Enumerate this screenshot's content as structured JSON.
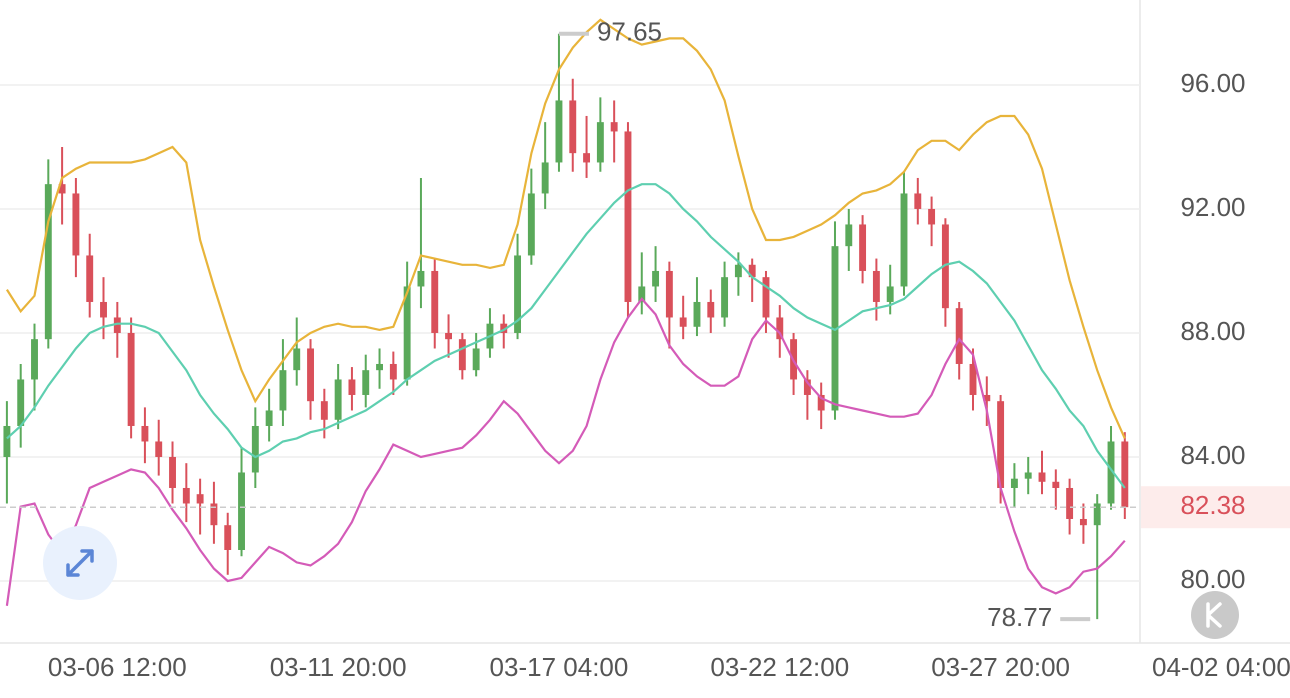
{
  "chart_data": {
    "type": "candlestick",
    "up_color": "#5aa95a",
    "down_color": "#d9505a",
    "ylim": [
      78.0,
      98.74
    ],
    "xlim": [
      -0.5,
      82.1
    ],
    "grid": true,
    "yticks": [
      {
        "value": 80,
        "label": "80.00"
      },
      {
        "value": 84,
        "label": "84.00"
      },
      {
        "value": 88,
        "label": "88.00"
      },
      {
        "value": 92,
        "label": "92.00"
      },
      {
        "value": 96,
        "label": "96.00"
      }
    ],
    "xticks": [
      {
        "value": 8,
        "label": "03-06 12:00"
      },
      {
        "value": 24,
        "label": "03-11 20:00"
      },
      {
        "value": 40,
        "label": "03-17 04:00"
      },
      {
        "value": 56,
        "label": "03-22 12:00"
      },
      {
        "value": 72,
        "label": "03-27 20:00"
      },
      {
        "value": 88,
        "label": "04-02 04:00"
      }
    ],
    "candles": [
      [
        84.0,
        85.8,
        82.5,
        85.0
      ],
      [
        85.0,
        87.0,
        84.3,
        86.5
      ],
      [
        86.5,
        88.3,
        85.5,
        87.8
      ],
      [
        87.8,
        93.6,
        87.5,
        92.8
      ],
      [
        92.8,
        94.0,
        91.5,
        92.5
      ],
      [
        92.5,
        93.0,
        89.8,
        90.5
      ],
      [
        90.5,
        91.2,
        88.5,
        89.0
      ],
      [
        89.0,
        89.8,
        87.8,
        88.5
      ],
      [
        88.5,
        89.0,
        87.2,
        88.0
      ],
      [
        88.0,
        88.5,
        84.6,
        85.0
      ],
      [
        85.0,
        85.6,
        83.8,
        84.5
      ],
      [
        84.5,
        85.2,
        83.4,
        84.0
      ],
      [
        84.0,
        84.5,
        82.5,
        83.0
      ],
      [
        83.0,
        83.8,
        81.9,
        82.5
      ],
      [
        82.8,
        83.3,
        81.5,
        82.5
      ],
      [
        82.5,
        83.2,
        81.2,
        81.8
      ],
      [
        81.8,
        82.2,
        80.2,
        81.0
      ],
      [
        81.0,
        84.3,
        80.8,
        83.5
      ],
      [
        83.5,
        85.6,
        83.0,
        85.0
      ],
      [
        85.0,
        86.2,
        84.5,
        85.5
      ],
      [
        85.5,
        87.8,
        85.0,
        86.8
      ],
      [
        86.8,
        88.5,
        86.3,
        87.5
      ],
      [
        87.5,
        87.8,
        85.2,
        85.8
      ],
      [
        85.8,
        86.2,
        84.6,
        85.2
      ],
      [
        85.2,
        87.0,
        84.9,
        86.5
      ],
      [
        86.5,
        86.9,
        85.5,
        86.0
      ],
      [
        86.0,
        87.3,
        85.6,
        86.8
      ],
      [
        86.8,
        87.5,
        86.2,
        87.0
      ],
      [
        87.0,
        87.4,
        86.0,
        86.5
      ],
      [
        86.5,
        90.3,
        86.3,
        89.5
      ],
      [
        89.5,
        93.0,
        88.8,
        90.0
      ],
      [
        90.0,
        90.4,
        87.5,
        88.0
      ],
      [
        88.0,
        88.6,
        87.2,
        87.8
      ],
      [
        87.8,
        88.0,
        86.5,
        86.8
      ],
      [
        86.8,
        88.0,
        86.6,
        87.5
      ],
      [
        87.5,
        88.8,
        87.2,
        88.3
      ],
      [
        88.3,
        88.6,
        87.5,
        88.0
      ],
      [
        88.0,
        91.2,
        87.8,
        90.5
      ],
      [
        90.5,
        93.3,
        90.2,
        92.5
      ],
      [
        92.5,
        94.8,
        92.0,
        93.5
      ],
      [
        93.5,
        97.65,
        93.2,
        95.5
      ],
      [
        95.5,
        96.2,
        93.2,
        93.8
      ],
      [
        93.8,
        95.0,
        93.0,
        93.5
      ],
      [
        93.5,
        95.6,
        93.2,
        94.8
      ],
      [
        94.8,
        95.5,
        93.5,
        94.5
      ],
      [
        94.5,
        94.8,
        88.5,
        89.0
      ],
      [
        89.0,
        90.6,
        88.6,
        89.5
      ],
      [
        89.5,
        90.8,
        89.0,
        90.0
      ],
      [
        90.0,
        90.3,
        87.5,
        88.5
      ],
      [
        88.5,
        89.2,
        87.8,
        88.2
      ],
      [
        88.2,
        89.8,
        87.9,
        89.0
      ],
      [
        89.0,
        89.4,
        88.0,
        88.5
      ],
      [
        88.5,
        90.3,
        88.2,
        89.8
      ],
      [
        89.8,
        90.6,
        89.2,
        90.2
      ],
      [
        90.2,
        90.4,
        89.0,
        89.8
      ],
      [
        89.8,
        90.0,
        88.0,
        88.5
      ],
      [
        88.5,
        88.9,
        87.2,
        87.8
      ],
      [
        87.8,
        88.0,
        86.0,
        86.5
      ],
      [
        86.5,
        86.8,
        85.2,
        86.0
      ],
      [
        86.0,
        86.4,
        84.9,
        85.5
      ],
      [
        85.5,
        91.6,
        85.2,
        90.8
      ],
      [
        90.8,
        92.0,
        90.0,
        91.5
      ],
      [
        91.5,
        91.8,
        89.6,
        90.0
      ],
      [
        90.0,
        90.4,
        88.4,
        89.0
      ],
      [
        89.0,
        90.2,
        88.6,
        89.5
      ],
      [
        89.5,
        93.2,
        89.2,
        92.5
      ],
      [
        92.5,
        93.0,
        91.5,
        92.0
      ],
      [
        92.0,
        92.4,
        90.8,
        91.5
      ],
      [
        91.5,
        91.7,
        88.2,
        88.8
      ],
      [
        88.8,
        89.0,
        86.5,
        87.0
      ],
      [
        87.0,
        87.5,
        85.5,
        86.0
      ],
      [
        86.0,
        86.6,
        85.0,
        85.8
      ],
      [
        85.8,
        86.0,
        82.5,
        83.0
      ],
      [
        83.0,
        83.8,
        82.4,
        83.3
      ],
      [
        83.3,
        84.0,
        82.8,
        83.5
      ],
      [
        83.5,
        84.2,
        82.8,
        83.2
      ],
      [
        83.2,
        83.6,
        82.3,
        83.0
      ],
      [
        83.0,
        83.3,
        81.5,
        82.0
      ],
      [
        82.0,
        82.5,
        81.2,
        81.8
      ],
      [
        81.8,
        82.8,
        78.77,
        82.5
      ],
      [
        82.5,
        85.0,
        82.3,
        84.5
      ],
      [
        84.5,
        84.8,
        82.0,
        82.38
      ]
    ],
    "bands": [
      {
        "color": "#e8b43a",
        "values": [
          89.4,
          88.7,
          89.2,
          91.6,
          93.0,
          93.3,
          93.5,
          93.5,
          93.5,
          93.5,
          93.6,
          93.8,
          94.0,
          93.5,
          91.0,
          89.5,
          88.1,
          86.8,
          85.8,
          86.5,
          87.1,
          87.7,
          88.0,
          88.2,
          88.3,
          88.2,
          88.2,
          88.1,
          88.2,
          89.3,
          90.5,
          90.4,
          90.3,
          90.2,
          90.2,
          90.1,
          90.2,
          91.5,
          93.8,
          95.4,
          96.5,
          97.2,
          97.7,
          98.1,
          97.8,
          97.5,
          97.3,
          97.4,
          97.5,
          97.5,
          97.1,
          96.5,
          95.5,
          93.7,
          92.0,
          91.0,
          91.0,
          91.1,
          91.3,
          91.5,
          91.8,
          92.2,
          92.5,
          92.6,
          92.8,
          93.2,
          93.9,
          94.2,
          94.2,
          93.9,
          94.4,
          94.8,
          95.0,
          95.0,
          94.4,
          93.3,
          91.5,
          89.7,
          88.2,
          86.8,
          85.6,
          84.6
        ]
      },
      {
        "color": "#5ecfb0",
        "values": [
          84.6,
          85.0,
          85.6,
          86.3,
          86.9,
          87.5,
          88.0,
          88.2,
          88.3,
          88.3,
          88.2,
          88.0,
          87.4,
          86.8,
          86.0,
          85.4,
          84.9,
          84.3,
          84.0,
          84.2,
          84.5,
          84.6,
          84.8,
          84.9,
          85.1,
          85.3,
          85.5,
          85.8,
          86.1,
          86.5,
          86.8,
          87.1,
          87.3,
          87.5,
          87.7,
          87.9,
          88.1,
          88.4,
          88.8,
          89.4,
          90.0,
          90.6,
          91.2,
          91.7,
          92.2,
          92.6,
          92.8,
          92.8,
          92.5,
          92.0,
          91.6,
          91.1,
          90.7,
          90.3,
          89.8,
          89.5,
          89.2,
          88.8,
          88.5,
          88.3,
          88.1,
          88.4,
          88.7,
          88.8,
          88.9,
          89.1,
          89.5,
          89.9,
          90.2,
          90.3,
          90.0,
          89.6,
          89.0,
          88.4,
          87.6,
          86.8,
          86.2,
          85.5,
          85.0,
          84.2,
          83.6,
          83.0
        ]
      },
      {
        "color": "#d45bb8",
        "values": [
          79.2,
          82.4,
          82.5,
          81.5,
          80.9,
          81.8,
          83.0,
          83.2,
          83.4,
          83.6,
          83.5,
          83.0,
          82.3,
          81.7,
          81.0,
          80.4,
          80.0,
          80.1,
          80.6,
          81.1,
          80.9,
          80.6,
          80.5,
          80.8,
          81.2,
          81.9,
          82.9,
          83.6,
          84.4,
          84.2,
          84.0,
          84.1,
          84.2,
          84.3,
          84.7,
          85.2,
          85.8,
          85.4,
          84.8,
          84.2,
          83.8,
          84.2,
          85.0,
          86.5,
          87.7,
          88.5,
          89.1,
          88.6,
          87.6,
          87.0,
          86.6,
          86.3,
          86.3,
          86.6,
          87.8,
          88.4,
          88.0,
          87.1,
          86.4,
          85.9,
          85.7,
          85.6,
          85.5,
          85.4,
          85.3,
          85.3,
          85.4,
          86.0,
          87.0,
          87.8,
          87.3,
          85.5,
          83.0,
          81.6,
          80.4,
          79.8,
          79.6,
          79.8,
          80.3,
          80.4,
          80.8,
          81.3
        ]
      }
    ],
    "high_label": 97.65,
    "high_index": 40,
    "low_label": 78.77,
    "low_index": 79,
    "last_price": 82.38
  }
}
